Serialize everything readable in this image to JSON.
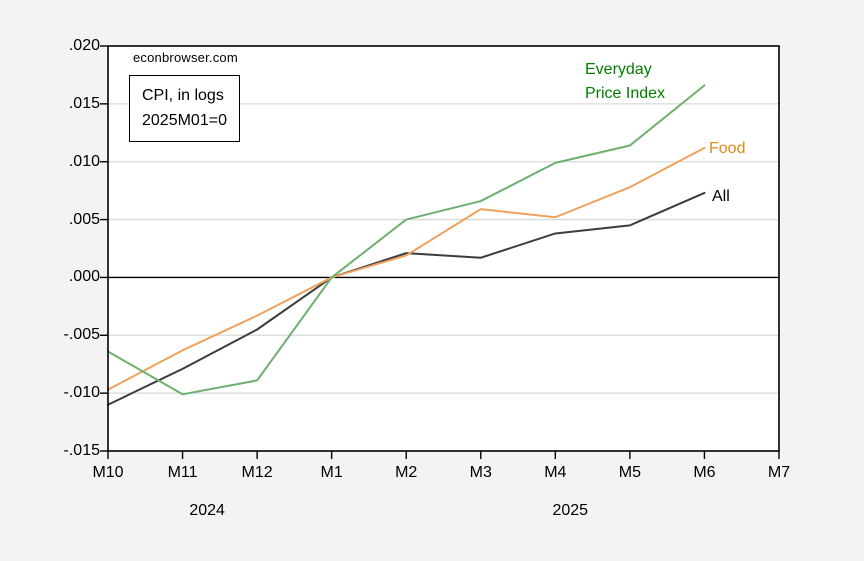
{
  "watermark": "econbrowser.com",
  "note_box": {
    "line1": "CPI, in logs",
    "line2": "2025M01=0"
  },
  "series_labels": {
    "epi": {
      "text": "Everyday\nPrice Index",
      "color": "#007d00"
    },
    "food": {
      "text": "Food",
      "color": "#dd8a19"
    },
    "all": {
      "text": "All",
      "color": "#000000"
    }
  },
  "chart_data": {
    "type": "line",
    "title": "CPI, in logs 2025M01=0",
    "categories": [
      "M10",
      "M11",
      "M12",
      "M1",
      "M2",
      "M3",
      "M4",
      "M5",
      "M6",
      "M7"
    ],
    "x_year_labels": [
      {
        "text": "2024",
        "position_index": 1.33
      },
      {
        "text": "2025",
        "position_index": 6.2
      }
    ],
    "series": [
      {
        "name": "All",
        "color": "#3c3c3c",
        "values": [
          -0.011,
          -0.0079,
          -0.0045,
          0.0,
          0.0021,
          0.0017,
          0.0038,
          0.0045,
          0.0073
        ]
      },
      {
        "name": "Food",
        "color": "#eea25e",
        "values": [
          -0.0097,
          -0.0063,
          -0.0033,
          0.0,
          0.0019,
          0.0059,
          0.0052,
          0.0078,
          0.0112
        ]
      },
      {
        "name": "Everyday Price Index",
        "color": "#6eaf6e",
        "values": [
          -0.0064,
          -0.0101,
          -0.0089,
          0.0,
          0.005,
          0.0066,
          0.0099,
          0.0114,
          0.0166
        ]
      }
    ],
    "ylim": [
      -0.015,
      0.02
    ],
    "ytick_values": [
      0.02,
      0.015,
      0.01,
      0.005,
      0.0,
      -0.005,
      -0.01,
      -0.015
    ],
    "ytick_labels": [
      ".020",
      ".015",
      ".010",
      ".005",
      ".000",
      "-.005",
      "-.010",
      "-.015"
    ],
    "grid": "horizontal",
    "grid_color": "#d9d9d9",
    "zero_line": true,
    "plot_background": "#ffffff",
    "page_background": "#f3f3f3",
    "legend_position": "inline-labels"
  }
}
